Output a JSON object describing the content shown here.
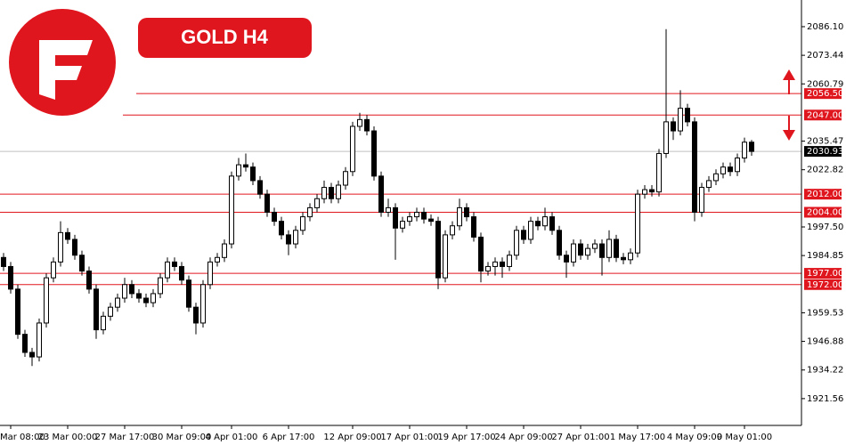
{
  "chart_data": {
    "type": "candlestick",
    "title": "GOLD H4",
    "up_color": "#ffffff",
    "down_color": "#000000",
    "line_color": "#000000",
    "level_color": "#e0161f",
    "current_color": "#000000",
    "ylim": [
      1909.7,
      2097.9
    ],
    "yticks": [
      {
        "value": 2086.1,
        "label": "2086.10"
      },
      2073.44,
      2060.79,
      2035.47,
      2022.82,
      {
        "value": 1997.5,
        "label": "1997.50"
      },
      1984.85,
      1959.53,
      1946.88,
      1934.22,
      1921.56
    ],
    "levels": [
      2056.5,
      2047,
      2012,
      2004,
      1977,
      1972
    ],
    "level_labels": [
      "2056.50",
      "2047.00",
      "2012.00",
      "2004.00",
      "1977.00",
      "1972.00"
    ],
    "current_price": 2030.93,
    "categories": [
      null,
      "Mar 08:00",
      null,
      null,
      null,
      null,
      null,
      null,
      null,
      "23 Mar 00:00",
      null,
      null,
      null,
      null,
      null,
      null,
      null,
      "27 Mar 17:00",
      null,
      null,
      null,
      null,
      null,
      null,
      null,
      "30 Mar 09:00",
      null,
      null,
      null,
      null,
      null,
      null,
      "4 Apr 01:00",
      null,
      null,
      null,
      null,
      null,
      null,
      null,
      "6 Apr 17:00",
      null,
      null,
      null,
      null,
      null,
      null,
      null,
      null,
      "12 Apr 09:00",
      null,
      null,
      null,
      null,
      null,
      null,
      null,
      "17 Apr 01:00",
      null,
      null,
      null,
      null,
      null,
      null,
      null,
      "19 Apr 17:00",
      null,
      null,
      null,
      null,
      null,
      null,
      null,
      "24 Apr 09:00",
      null,
      null,
      null,
      null,
      null,
      null,
      null,
      "27 Apr 01:00",
      null,
      null,
      null,
      null,
      null,
      null,
      null,
      "1 May 17:00",
      null,
      null,
      null,
      null,
      null,
      null,
      null,
      "4 May 09:00",
      null,
      null,
      null,
      null,
      null,
      null,
      "9 May 01:00",
      null
    ],
    "open": [
      1984,
      1980,
      1970,
      1950,
      1942,
      1940,
      1955,
      1975,
      1982,
      1995,
      1992,
      1985,
      1978,
      1970,
      1952,
      1958,
      1962,
      1966,
      1972,
      1968,
      1966,
      1964,
      1968,
      1975,
      1982,
      1980,
      1974,
      1962,
      1955,
      1972,
      1982,
      1984,
      1990,
      2020,
      2025,
      2024,
      2018,
      2012,
      2004,
      2000,
      1994,
      1990,
      1996,
      2002,
      2006,
      2010,
      2015,
      2010,
      2016,
      2022,
      2042,
      2045,
      2040,
      2020,
      2004,
      2006,
      1997,
      2000,
      2002,
      2004,
      2001,
      2000,
      1975,
      1994,
      1998,
      2006,
      2002,
      1993,
      1978,
      1980,
      1982,
      1980,
      1985,
      1996,
      1992,
      2000,
      1998,
      2002,
      1996,
      1985,
      1982,
      1990,
      1985,
      1988,
      1990,
      1984,
      1992,
      1984,
      1983,
      1986,
      2012,
      2014,
      2013,
      2030,
      2044,
      2040,
      2050,
      2044,
      2004,
      2015,
      2018,
      2021,
      2024,
      2022,
      2028,
      2035
    ],
    "high": [
      1986,
      1982,
      1972,
      1952,
      1944,
      1957,
      1977,
      1984,
      2000,
      1997,
      1994,
      1987,
      1980,
      1972,
      1960,
      1964,
      1968,
      1975,
      1974,
      1970,
      1968,
      1970,
      1977,
      1984,
      1984,
      1982,
      1976,
      1964,
      1974,
      1984,
      1986,
      1992,
      2022,
      2028,
      2030,
      2026,
      2020,
      2014,
      2006,
      2002,
      1996,
      1998,
      2004,
      2008,
      2012,
      2018,
      2017,
      2018,
      2024,
      2044,
      2048,
      2047,
      2042,
      2022,
      2010,
      2008,
      2002,
      2004,
      2006,
      2006,
      2003,
      2002,
      1996,
      2000,
      2010,
      2008,
      2004,
      1995,
      1982,
      1984,
      1984,
      1987,
      1998,
      1998,
      2002,
      2002,
      2006,
      2004,
      1998,
      1987,
      1992,
      1992,
      1990,
      1992,
      1992,
      1996,
      1994,
      1986,
      1988,
      2014,
      2016,
      2016,
      2032,
      2085,
      2046,
      2058,
      2052,
      2046,
      2017,
      2020,
      2023,
      2026,
      2026,
      2030,
      2037,
      2036
    ],
    "low": [
      1978,
      1968,
      1948,
      1940,
      1936,
      1938,
      1953,
      1973,
      1980,
      1990,
      1983,
      1976,
      1968,
      1948,
      1950,
      1956,
      1960,
      1964,
      1966,
      1964,
      1962,
      1962,
      1966,
      1973,
      1978,
      1972,
      1960,
      1950,
      1953,
      1970,
      1980,
      1982,
      1988,
      2018,
      2022,
      2016,
      2010,
      2002,
      1998,
      1992,
      1985,
      1988,
      1994,
      2000,
      2004,
      2008,
      2008,
      2008,
      2014,
      2020,
      2040,
      2038,
      2018,
      2002,
      2002,
      1983,
      1995,
      1998,
      2000,
      1999,
      1998,
      1970,
      1973,
      1992,
      1996,
      2000,
      1991,
      1973,
      1976,
      1976,
      1975,
      1978,
      1983,
      1990,
      1990,
      1996,
      1996,
      1994,
      1983,
      1975,
      1980,
      1983,
      1983,
      1986,
      1976,
      1982,
      1982,
      1981,
      1981,
      1984,
      2010,
      2011,
      2011,
      2028,
      2036,
      2038,
      2042,
      2000,
      2002,
      2013,
      2016,
      2019,
      2020,
      2020,
      2026,
      2029
    ],
    "close": [
      1980,
      1970,
      1950,
      1942,
      1940,
      1955,
      1975,
      1982,
      1995,
      1992,
      1985,
      1978,
      1970,
      1952,
      1958,
      1962,
      1966,
      1972,
      1968,
      1966,
      1964,
      1968,
      1975,
      1982,
      1980,
      1974,
      1962,
      1955,
      1972,
      1982,
      1984,
      1990,
      2020,
      2025,
      2024,
      2018,
      2012,
      2004,
      2000,
      1994,
      1990,
      1996,
      2002,
      2006,
      2010,
      2015,
      2010,
      2016,
      2022,
      2042,
      2045,
      2040,
      2020,
      2004,
      2006,
      1997,
      2000,
      2002,
      2004,
      2001,
      2000,
      1975,
      1994,
      1998,
      2006,
      2002,
      1993,
      1978,
      1980,
      1982,
      1980,
      1985,
      1996,
      1992,
      2000,
      1998,
      2002,
      1996,
      1985,
      1982,
      1990,
      1985,
      1988,
      1990,
      1984,
      1992,
      1984,
      1983,
      1986,
      2012,
      2014,
      2013,
      2030,
      2044,
      2040,
      2050,
      2044,
      2004,
      2015,
      2018,
      2021,
      2024,
      2022,
      2028,
      2035,
      2030.93
    ]
  }
}
